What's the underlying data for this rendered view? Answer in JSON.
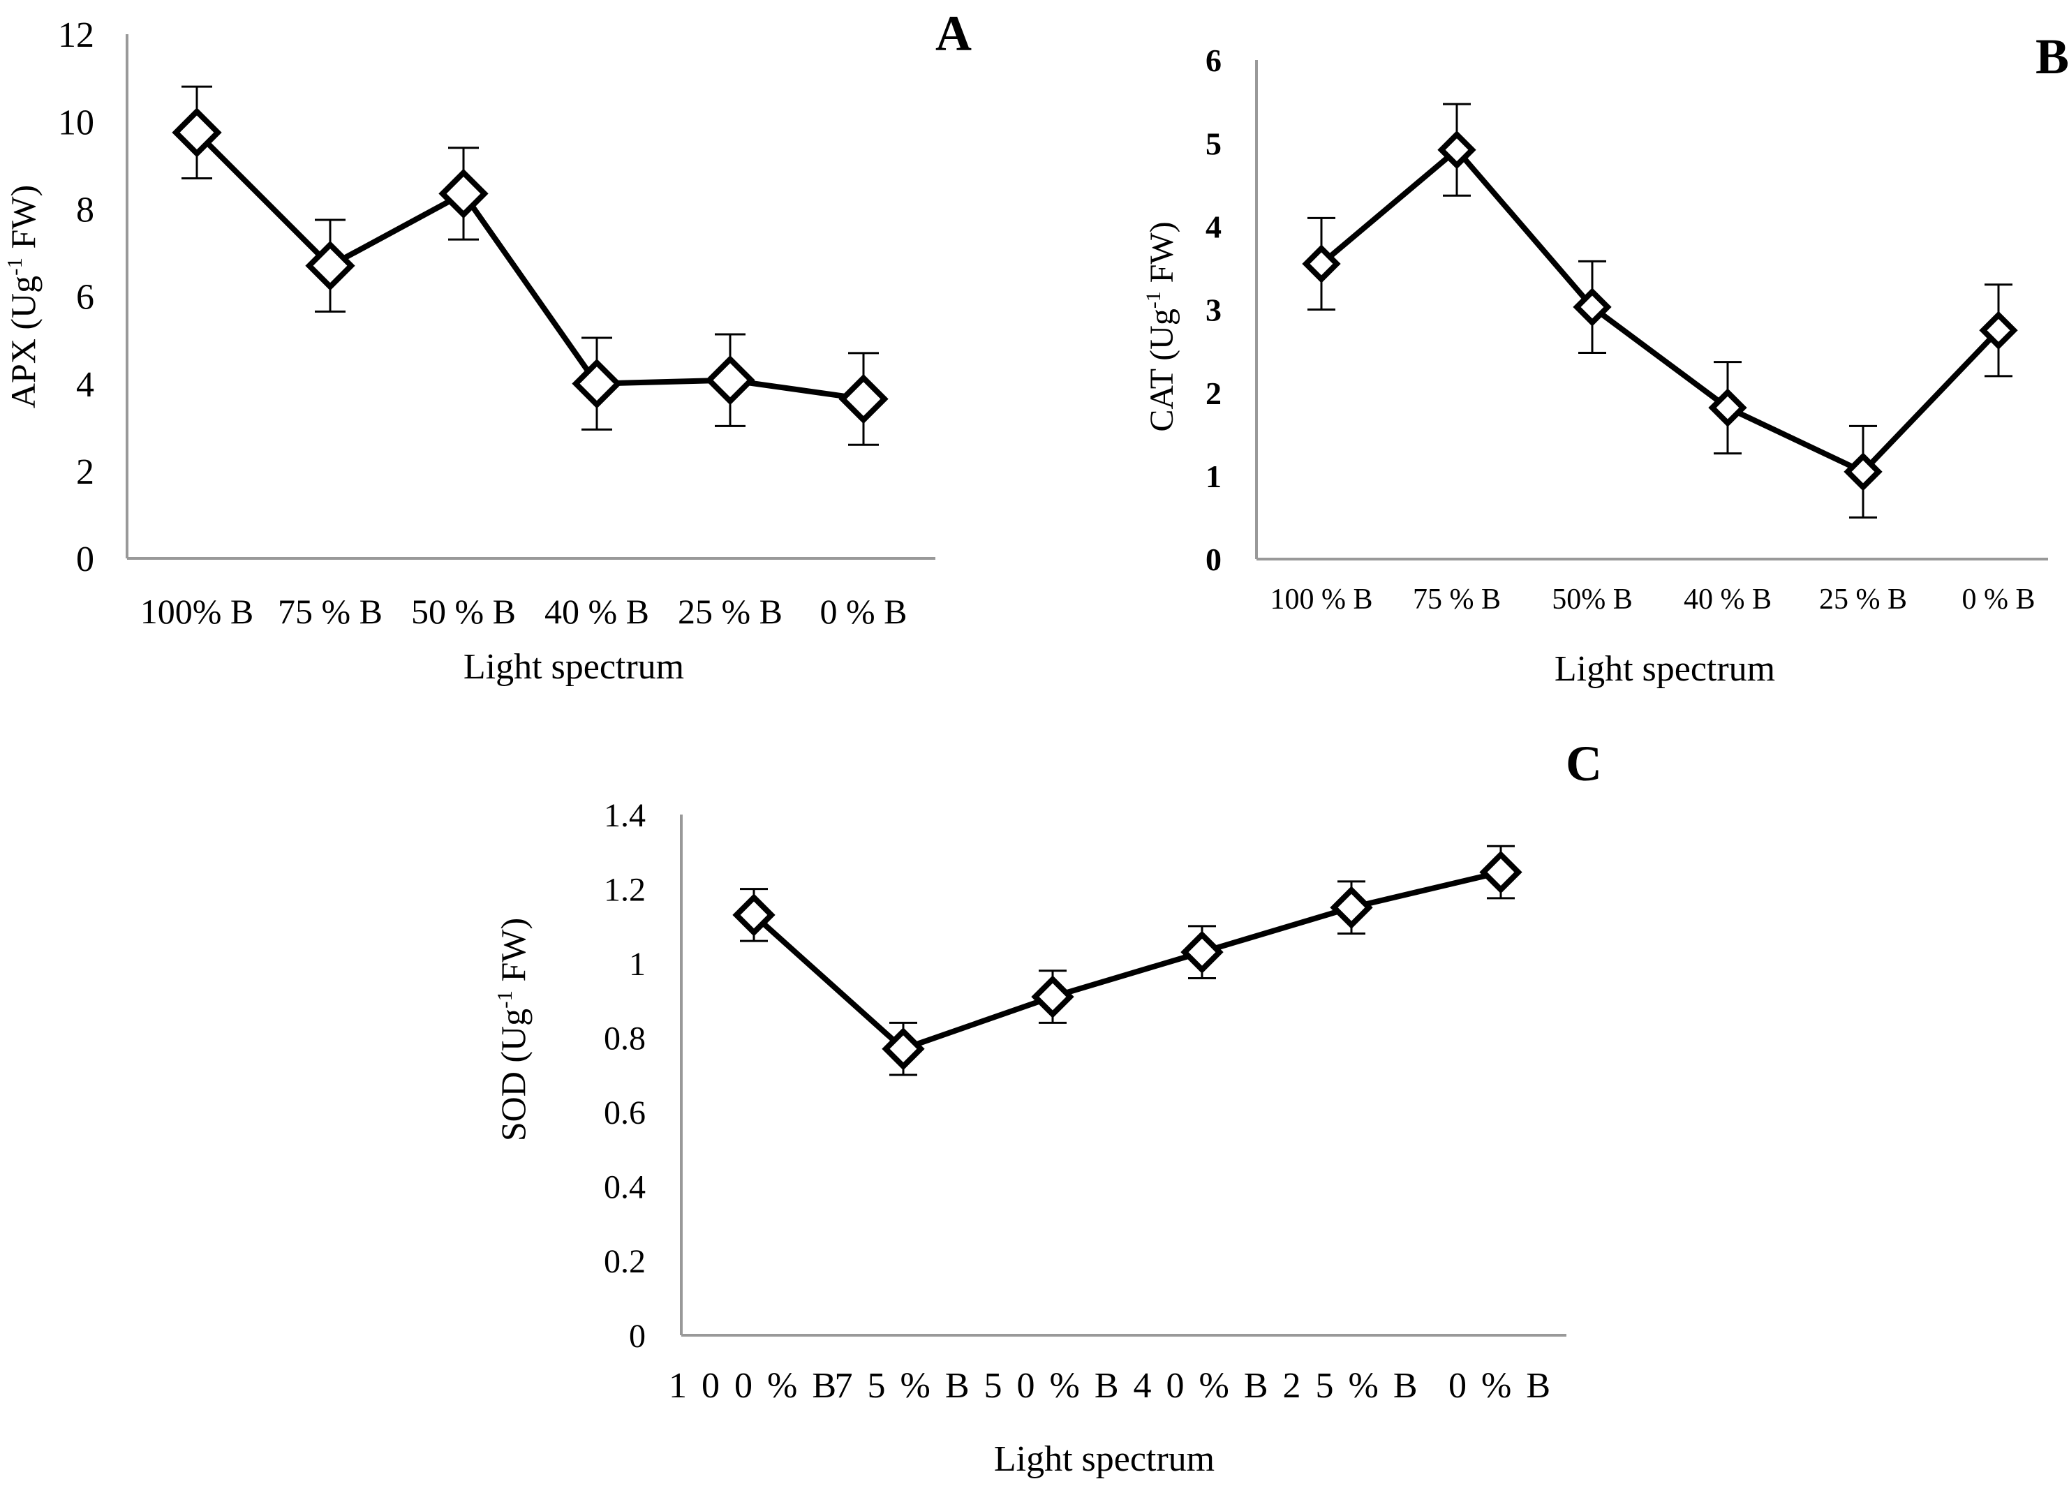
{
  "chart_data": [
    {
      "type": "line",
      "panel_label": "A",
      "xlabel": "Light spectrum",
      "ylabel_main": "APX  (Ug",
      "ylabel_sup": "-1",
      "ylabel_end": " FW)",
      "categories": [
        "100% B",
        "75 % B",
        "50 % B",
        "40 % B",
        "25 % B",
        "0 % B"
      ],
      "values": [
        9.75,
        6.7,
        8.35,
        4.0,
        4.08,
        3.65
      ],
      "errors": [
        1.05,
        1.05,
        1.05,
        1.05,
        1.05,
        1.05
      ],
      "ylim": [
        0,
        12
      ],
      "yticks": [
        "0",
        "2",
        "4",
        "6",
        "8",
        "10",
        "12"
      ],
      "ytick_values": [
        0,
        2,
        4,
        6,
        8,
        10,
        12
      ]
    },
    {
      "type": "line",
      "panel_label": "B",
      "xlabel": "Light spectrum",
      "ylabel_main": "CAT  (Ug",
      "ylabel_sup": "-1",
      "ylabel_end": " FW)",
      "categories": [
        "100 % B",
        "75 % B",
        "50% B",
        "40 % B",
        "25 % B",
        "0 % B"
      ],
      "values": [
        3.55,
        4.92,
        3.03,
        1.82,
        1.05,
        2.75
      ],
      "errors": [
        0.55,
        0.55,
        0.55,
        0.55,
        0.55,
        0.55
      ],
      "ylim": [
        0,
        6
      ],
      "yticks": [
        "0",
        "1",
        "2",
        "3",
        "4",
        "5",
        "6"
      ],
      "ytick_values": [
        0,
        1,
        2,
        3,
        4,
        5,
        6
      ]
    },
    {
      "type": "line",
      "panel_label": "C",
      "xlabel": "Light spectrum",
      "ylabel_main": "SOD (Ug",
      "ylabel_sup": "-1",
      "ylabel_end": " FW)",
      "categories": [
        "1 0 0 % B",
        "7 5 % B",
        "5 0 % B",
        "4 0 % B",
        "2 5 % B",
        "0 % B"
      ],
      "values": [
        1.13,
        0.77,
        0.91,
        1.03,
        1.15,
        1.245
      ],
      "errors": [
        0.07,
        0.07,
        0.07,
        0.07,
        0.07,
        0.07
      ],
      "ylim": [
        0,
        1.4
      ],
      "yticks": [
        "0",
        "0.2",
        "0.4",
        "0.6",
        "0.8",
        "1",
        "1.2",
        "1.4"
      ],
      "ytick_values": [
        0,
        0.2,
        0.4,
        0.6,
        0.8,
        1.0,
        1.2,
        1.4
      ]
    }
  ]
}
